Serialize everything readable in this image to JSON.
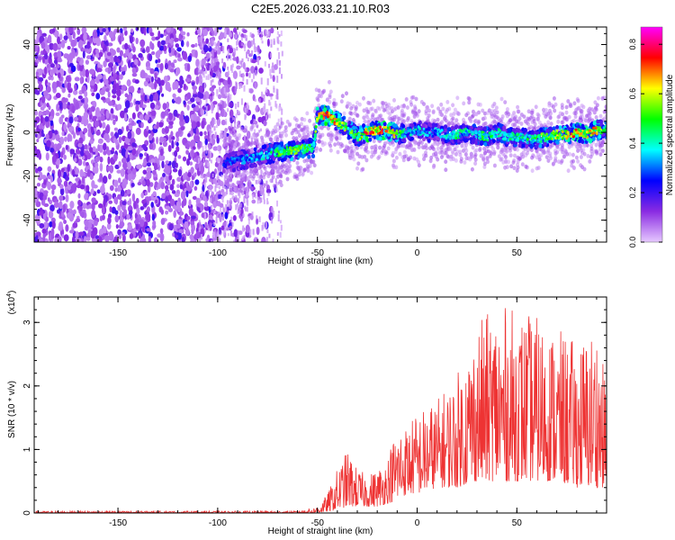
{
  "chart_data": [
    {
      "type": "heatmap",
      "title": "C2E5.2026.033.21.10.R03",
      "xlabel": "Height of straight line (km)",
      "ylabel": "Frequency (Hz)",
      "xlim": [
        -192,
        95
      ],
      "ylim": [
        -50,
        48
      ],
      "x_ticks": [
        -150,
        -100,
        -50,
        0,
        50
      ],
      "y_ticks": [
        -40,
        -20,
        0,
        20,
        40
      ],
      "grid": false,
      "colorbar": {
        "label": "Normalized spectral amplitude",
        "range": [
          0,
          0.87
        ],
        "ticks": [
          0.0,
          0.2,
          0.4,
          0.6,
          0.8
        ],
        "colormap": [
          "#e6c8ff",
          "#8a2be2",
          "#0000ff",
          "#00ffff",
          "#00ff00",
          "#ffff00",
          "#ff0000",
          "#ff00ff"
        ]
      },
      "signal_track": {
        "x": [
          -97,
          -90,
          -80,
          -70,
          -60,
          -52,
          -50,
          -46,
          -40,
          -35,
          -30,
          -25,
          -20,
          -15,
          -10,
          -5,
          0,
          5,
          10,
          15,
          20,
          25,
          30,
          35,
          40,
          45,
          50,
          55,
          60,
          65,
          70,
          75,
          80,
          85,
          90,
          95
        ],
        "y": [
          -14,
          -13,
          -11,
          -9,
          -8,
          -7,
          7,
          8,
          5,
          2,
          -2,
          0,
          1,
          1,
          -1,
          0,
          1,
          0,
          0,
          -1,
          -1,
          0,
          -1,
          -2,
          0,
          -2,
          -2,
          -3,
          -3,
          -2,
          -1,
          -1,
          0,
          -1,
          1,
          1
        ],
        "peak_amplitude": [
          0.3,
          0.35,
          0.4,
          0.55,
          0.6,
          0.5,
          0.75,
          0.85,
          0.7,
          0.6,
          0.55,
          0.85,
          0.8,
          0.85,
          0.6,
          0.4,
          0.45,
          0.4,
          0.4,
          0.45,
          0.5,
          0.45,
          0.5,
          0.55,
          0.45,
          0.5,
          0.5,
          0.5,
          0.55,
          0.6,
          0.65,
          0.7,
          0.8,
          0.7,
          0.75,
          0.5
        ]
      }
    },
    {
      "type": "line",
      "xlabel": "Height of straight line (km)",
      "ylabel": "SNR (10 * v/v)",
      "y_multiplier": "(x10",
      "y_multiplier_exp": "4",
      "y_multiplier_close": ")",
      "xlim": [
        -192,
        95
      ],
      "ylim": [
        0,
        3.4
      ],
      "x_ticks": [
        -150,
        -100,
        -50,
        0,
        50
      ],
      "y_ticks": [
        0,
        1,
        2,
        3
      ],
      "grid": false,
      "series": [
        {
          "color": "#ee3333",
          "envelope": {
            "x": [
              -192,
              -60,
              -50,
              -45,
              -40,
              -35,
              -30,
              -25,
              -20,
              -15,
              -10,
              -5,
              0,
              10,
              20,
              30,
              40,
              50,
              60,
              70,
              80,
              90,
              95
            ],
            "y_max": [
              0.03,
              0.03,
              0.1,
              0.3,
              0.7,
              1.0,
              0.7,
              0.6,
              0.7,
              0.9,
              1.4,
              1.4,
              1.6,
              1.8,
              2.2,
              3.0,
              3.3,
              3.2,
              3.1,
              2.9,
              2.7,
              3.0,
              2.0
            ],
            "y_min": [
              0.0,
              0.0,
              0.0,
              0.02,
              0.05,
              0.1,
              0.1,
              0.1,
              0.1,
              0.15,
              0.2,
              0.3,
              0.3,
              0.4,
              0.4,
              0.5,
              0.5,
              0.5,
              0.5,
              0.5,
              0.4,
              0.4,
              0.4
            ]
          }
        }
      ]
    }
  ]
}
